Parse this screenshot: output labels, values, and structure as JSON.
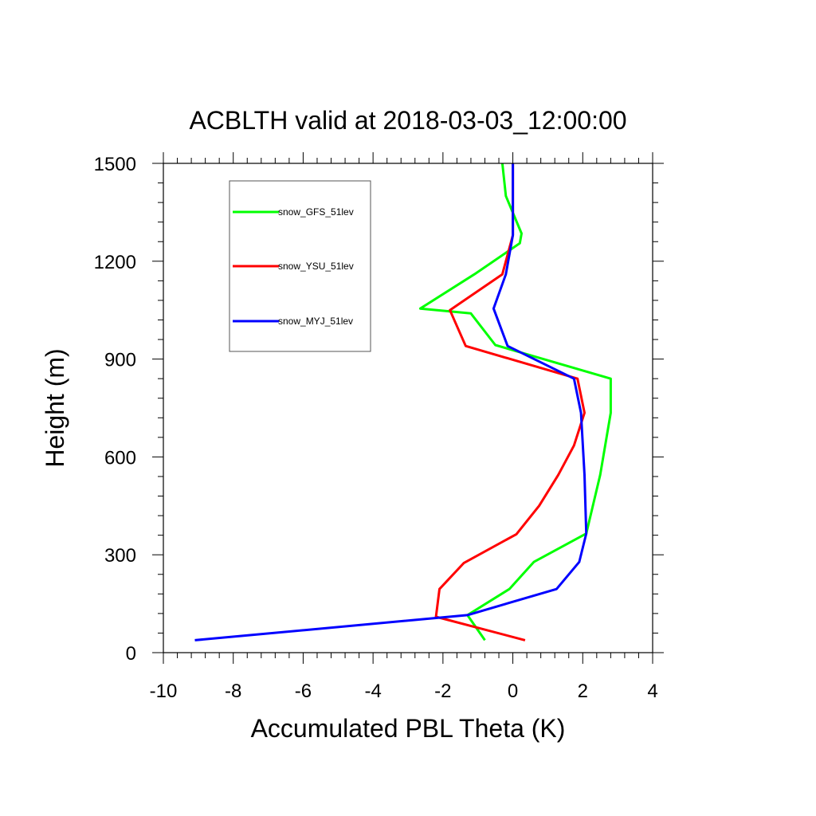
{
  "chart_data": {
    "type": "line",
    "title": "ACBLTH valid at 2018-03-03_12:00:00",
    "xlabel": "Accumulated PBL Theta (K)",
    "ylabel": "Height (m)",
    "xlim": [
      -10,
      4
    ],
    "ylim": [
      0,
      1500
    ],
    "xticks": [
      "-10",
      "-8",
      "-6",
      "-4",
      "-2",
      "0",
      "2",
      "4"
    ],
    "yticks": [
      "0",
      "300",
      "600",
      "900",
      "1200",
      "1500"
    ],
    "legend_position": "top-left",
    "series": [
      {
        "name": "snow_GFS_51lev",
        "color": "#00ff00",
        "points": [
          [
            -0.8,
            38
          ],
          [
            -1.3,
            115
          ],
          [
            -0.1,
            195
          ],
          [
            0.6,
            278
          ],
          [
            2.1,
            365
          ],
          [
            2.5,
            545
          ],
          [
            2.8,
            735
          ],
          [
            2.8,
            840
          ],
          [
            -0.5,
            943
          ],
          [
            -1.2,
            1040
          ],
          [
            -2.65,
            1055
          ],
          [
            -1.1,
            1160
          ],
          [
            0.2,
            1255
          ],
          [
            0.25,
            1285
          ],
          [
            -0.2,
            1400
          ],
          [
            -0.3,
            1500
          ]
        ]
      },
      {
        "name": "snow_YSU_51lev",
        "color": "#ff0000",
        "points": [
          [
            0.35,
            38
          ],
          [
            -2.2,
            110
          ],
          [
            -2.1,
            195
          ],
          [
            -1.4,
            275
          ],
          [
            0.1,
            363
          ],
          [
            0.75,
            450
          ],
          [
            1.3,
            545
          ],
          [
            1.75,
            635
          ],
          [
            2.05,
            735
          ],
          [
            1.85,
            840
          ],
          [
            -1.35,
            940
          ],
          [
            -1.8,
            1050
          ],
          [
            -0.3,
            1160
          ],
          [
            0.0,
            1280
          ],
          [
            0.0,
            1500
          ]
        ]
      },
      {
        "name": "snow_MYJ_51lev",
        "color": "#0000ff",
        "points": [
          [
            -9.1,
            38
          ],
          [
            -1.3,
            115
          ],
          [
            1.25,
            195
          ],
          [
            1.9,
            278
          ],
          [
            2.1,
            365
          ],
          [
            2.05,
            545
          ],
          [
            1.95,
            735
          ],
          [
            1.75,
            840
          ],
          [
            -0.15,
            940
          ],
          [
            -0.55,
            1055
          ],
          [
            -0.2,
            1160
          ],
          [
            0.0,
            1280
          ],
          [
            0.0,
            1500
          ]
        ]
      }
    ]
  }
}
